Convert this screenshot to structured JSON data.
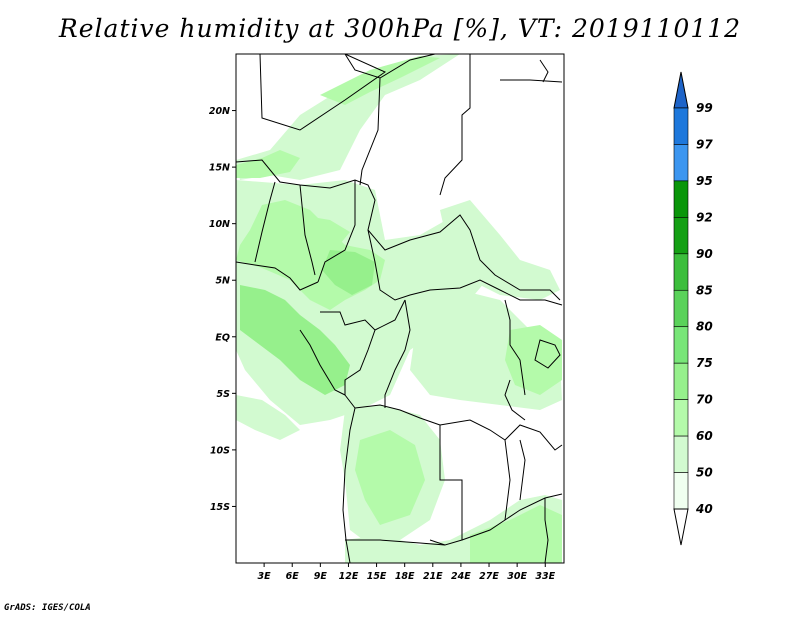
{
  "title": "Relative humidity at 300hPa [%], VT: 2019110112",
  "credit": "GrADS: IGES/COLA",
  "map": {
    "lat_labels": [
      "20N",
      "15N",
      "10N",
      "5N",
      "EQ",
      "5S",
      "10S",
      "15S"
    ],
    "lat_values": [
      20,
      15,
      10,
      5,
      0,
      -5,
      -10,
      -15
    ],
    "lon_labels": [
      "3E",
      "6E",
      "9E",
      "12E",
      "15E",
      "18E",
      "21E",
      "24E",
      "27E",
      "30E",
      "33E"
    ],
    "lon_values": [
      3,
      6,
      9,
      12,
      15,
      18,
      21,
      24,
      27,
      30,
      33
    ],
    "lon_range": [
      0,
      35
    ],
    "lat_range": [
      -20,
      25
    ]
  },
  "colorbar": {
    "labels": [
      "99",
      "97",
      "95",
      "92",
      "90",
      "85",
      "80",
      "75",
      "70",
      "60",
      "50",
      "40"
    ],
    "colors": [
      "#1e64c8",
      "#1e78dc",
      "#3c96f0",
      "#0a960a",
      "#14a014",
      "#3cbe3c",
      "#5ad25a",
      "#78e678",
      "#96f08c",
      "#b4faaa",
      "#d2fad0",
      "#f0fff0"
    ]
  }
}
